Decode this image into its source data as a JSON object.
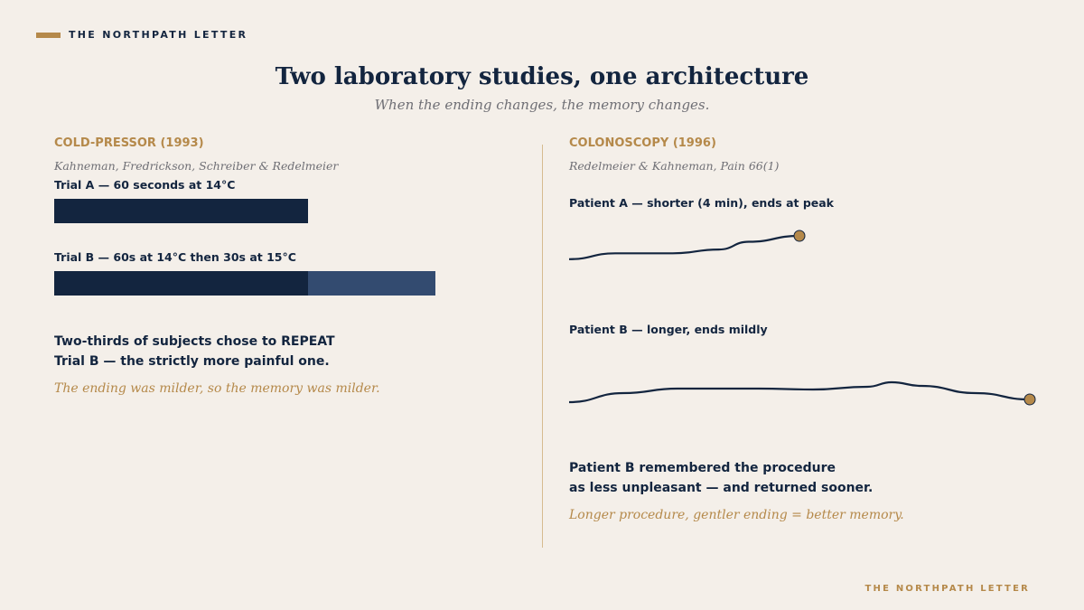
{
  "brand": {
    "top": "THE NORTHPATH LETTER",
    "bottom": "THE NORTHPATH LETTER",
    "accent": "#b5894a",
    "ink": "#13253f"
  },
  "header": {
    "title": "Two laboratory studies, one architecture",
    "subtitle": "When the ending changes, the memory changes."
  },
  "cold_pressor": {
    "section_title": "COLD-PRESSOR (1993)",
    "citation": "Kahneman, Fredrickson, Schreiber & Redelmeier",
    "trials": [
      {
        "label": "Trial A — 60 seconds at 14°C",
        "segments": [
          {
            "seconds": 60,
            "temp": "14°C",
            "color": "#13253f"
          }
        ]
      },
      {
        "label": "Trial B — 60s at 14°C then 30s at 15°C",
        "segments": [
          {
            "seconds": 60,
            "temp": "14°C",
            "color": "#13253f"
          },
          {
            "seconds": 30,
            "temp": "15°C",
            "color": "#334b70"
          }
        ]
      }
    ],
    "statement_line1": "Two-thirds of subjects chose to REPEAT",
    "statement_line2": "Trial B — the strictly more painful one.",
    "takeaway": "The ending was milder, so the memory was milder."
  },
  "colonoscopy": {
    "section_title": "COLONOSCOPY (1996)",
    "citation": "Redelmeier & Kahneman, Pain 66(1)",
    "patients": [
      {
        "label": "Patient A — shorter (4 min), ends at peak",
        "curve": [
          [
            0,
            0.4
          ],
          [
            0.2,
            0.55
          ],
          [
            0.45,
            0.55
          ],
          [
            0.65,
            0.65
          ],
          [
            0.78,
            0.85
          ],
          [
            1,
            1.0
          ]
        ]
      },
      {
        "label": "Patient B — longer, ends mildly",
        "curve": [
          [
            0,
            0.4
          ],
          [
            0.2,
            0.55
          ],
          [
            0.45,
            0.55
          ],
          [
            0.65,
            0.65
          ],
          [
            0.78,
            0.85
          ],
          [
            1,
            0.6
          ]
        ]
      }
    ],
    "statement_line1": "Patient B remembered the procedure",
    "statement_line2": "as less unpleasant — and returned sooner.",
    "takeaway": "Longer procedure, gentler ending = better memory."
  }
}
